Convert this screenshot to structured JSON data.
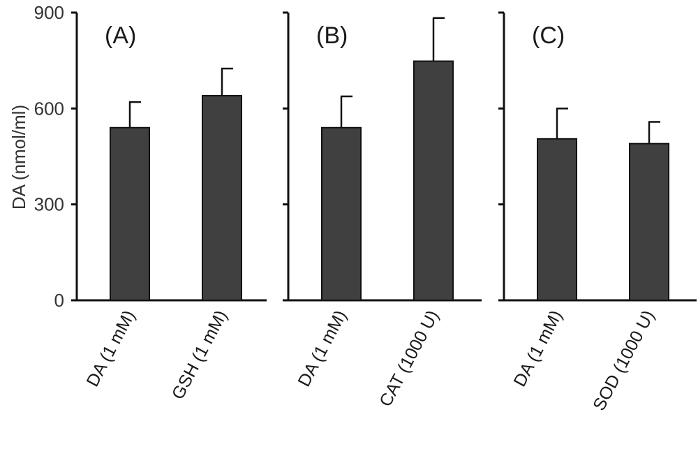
{
  "chart_data": {
    "type": "bar",
    "ylabel": "DA (nmol/ml)",
    "ylim": [
      0,
      900
    ],
    "yticks": [
      "0",
      "300",
      "600",
      "900"
    ],
    "bar_color": "#404040",
    "panels": [
      {
        "label": "(A)",
        "categories": [
          "DA (1 mM)",
          "GSH (1 mM)"
        ],
        "values": [
          540,
          640
        ],
        "errors": [
          80,
          85
        ]
      },
      {
        "label": "(B)",
        "categories": [
          "DA (1 mM)",
          "CAT (1000 U)"
        ],
        "values": [
          540,
          748
        ],
        "errors": [
          98,
          135
        ]
      },
      {
        "label": "(C)",
        "categories": [
          "DA (1 mM)",
          "SOD (1000 U)"
        ],
        "values": [
          505,
          490
        ],
        "errors": [
          95,
          68
        ]
      }
    ]
  }
}
